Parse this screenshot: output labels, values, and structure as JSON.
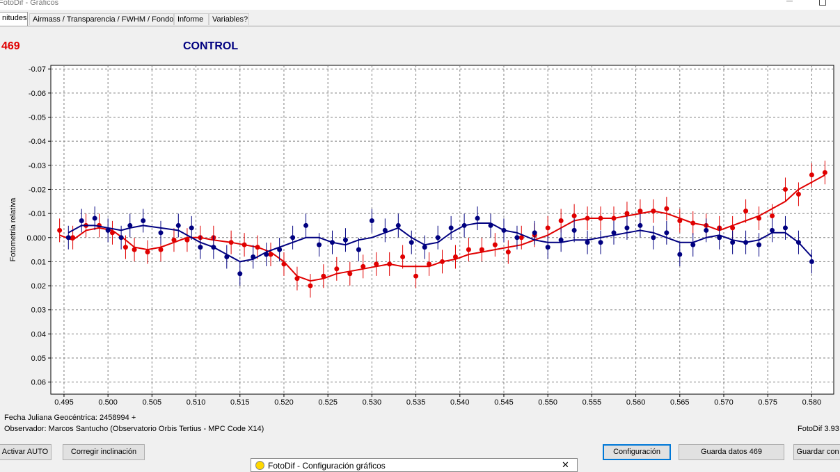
{
  "window": {
    "title": "FotoDif - Gráficos"
  },
  "tabs": [
    {
      "label": "nitudes",
      "active": true
    },
    {
      "label": "Airmass / Transparencia / FWHM / Fondo",
      "active": false
    },
    {
      "label": "Informe",
      "active": false
    },
    {
      "label": "Variables?",
      "active": false
    }
  ],
  "header": {
    "asteroid_label": "469",
    "control_label": "CONTROL"
  },
  "colors": {
    "asteroid": "#e00000",
    "control": "#000080",
    "grid": "#808080"
  },
  "chart_data": {
    "type": "scatter",
    "ylabel": "Fotometría relativa",
    "xlim": [
      0.4935,
      0.5825
    ],
    "ylim": [
      0.065,
      -0.0715
    ],
    "y_inverted": true,
    "grid": true,
    "x_ticks": [
      "0.495",
      "0.500",
      "0.505",
      "0.510",
      "0.515",
      "0.520",
      "0.525",
      "0.530",
      "0.535",
      "0.540",
      "0.545",
      "0.550",
      "0.555",
      "0.560",
      "0.565",
      "0.570",
      "0.575",
      "0.580"
    ],
    "y_ticks": [
      "-0.07",
      "-0.06",
      "-0.05",
      "-0.04",
      "-0.03",
      "-0.02",
      "-0.01",
      "0.000",
      "0.01",
      "0.02",
      "0.03",
      "0.04",
      "0.05",
      "0.06"
    ],
    "series": [
      {
        "name": "469",
        "color": "#e00000",
        "x": [
          0.4945,
          0.496,
          0.4975,
          0.499,
          0.5005,
          0.502,
          0.503,
          0.5045,
          0.506,
          0.5075,
          0.509,
          0.5105,
          0.512,
          0.514,
          0.5155,
          0.517,
          0.5185,
          0.52,
          0.5215,
          0.523,
          0.5245,
          0.526,
          0.5275,
          0.529,
          0.5305,
          0.532,
          0.5335,
          0.535,
          0.5365,
          0.538,
          0.5395,
          0.541,
          0.5425,
          0.544,
          0.5455,
          0.547,
          0.5485,
          0.55,
          0.5515,
          0.553,
          0.5545,
          0.556,
          0.5575,
          0.559,
          0.5605,
          0.562,
          0.5635,
          0.565,
          0.5665,
          0.568,
          0.5695,
          0.571,
          0.5725,
          0.574,
          0.5755,
          0.577,
          0.5785,
          0.58,
          0.5815
        ],
        "y": [
          -0.003,
          0.0,
          -0.005,
          -0.005,
          -0.002,
          0.004,
          0.005,
          0.006,
          0.005,
          0.001,
          0.001,
          0.0,
          0.0,
          0.002,
          0.003,
          0.004,
          0.007,
          0.011,
          0.017,
          0.02,
          0.016,
          0.013,
          0.015,
          0.012,
          0.011,
          0.011,
          0.008,
          0.016,
          0.011,
          0.01,
          0.008,
          0.005,
          0.005,
          0.003,
          0.006,
          0.0,
          -0.001,
          -0.004,
          -0.007,
          -0.009,
          -0.008,
          -0.008,
          -0.008,
          -0.01,
          -0.011,
          -0.011,
          -0.012,
          -0.007,
          -0.006,
          -0.005,
          -0.004,
          -0.004,
          -0.011,
          -0.008,
          -0.009,
          -0.02,
          -0.018,
          -0.026,
          -0.027
        ],
        "fit": [
          -0.001,
          0.001,
          -0.003,
          -0.004,
          -0.003,
          0.001,
          0.004,
          0.005,
          0.004,
          0.002,
          0.0,
          0.0,
          0.001,
          0.002,
          0.003,
          0.004,
          0.006,
          0.01,
          0.016,
          0.018,
          0.017,
          0.015,
          0.014,
          0.013,
          0.012,
          0.011,
          0.012,
          0.012,
          0.012,
          0.01,
          0.009,
          0.007,
          0.006,
          0.005,
          0.004,
          0.003,
          0.001,
          -0.001,
          -0.004,
          -0.007,
          -0.008,
          -0.008,
          -0.008,
          -0.009,
          -0.01,
          -0.011,
          -0.01,
          -0.008,
          -0.006,
          -0.005,
          -0.003,
          -0.005,
          -0.007,
          -0.009,
          -0.012,
          -0.015,
          -0.02,
          -0.023,
          -0.026
        ]
      },
      {
        "name": "CONTROL",
        "color": "#000080",
        "x": [
          0.4955,
          0.497,
          0.4985,
          0.5,
          0.5015,
          0.5025,
          0.504,
          0.506,
          0.508,
          0.5095,
          0.5105,
          0.512,
          0.5135,
          0.515,
          0.5165,
          0.518,
          0.5195,
          0.521,
          0.5225,
          0.524,
          0.5255,
          0.527,
          0.5285,
          0.53,
          0.5315,
          0.533,
          0.5345,
          0.536,
          0.5375,
          0.539,
          0.5405,
          0.542,
          0.5435,
          0.545,
          0.5465,
          0.5485,
          0.55,
          0.5515,
          0.553,
          0.5545,
          0.556,
          0.5575,
          0.559,
          0.5605,
          0.562,
          0.5635,
          0.565,
          0.5665,
          0.568,
          0.5695,
          0.571,
          0.5725,
          0.574,
          0.5755,
          0.577,
          0.5785,
          0.58
        ],
        "y": [
          0.0,
          -0.007,
          -0.008,
          -0.003,
          0.0,
          -0.005,
          -0.007,
          -0.002,
          -0.005,
          -0.004,
          0.004,
          0.004,
          0.008,
          0.015,
          0.008,
          0.007,
          0.005,
          0.0,
          -0.005,
          0.003,
          0.002,
          0.001,
          0.005,
          -0.007,
          -0.003,
          -0.005,
          0.002,
          0.004,
          0.0,
          -0.004,
          -0.005,
          -0.008,
          -0.005,
          -0.003,
          0.0,
          -0.002,
          0.004,
          0.001,
          -0.003,
          0.002,
          0.002,
          -0.002,
          -0.004,
          -0.005,
          0.0,
          -0.002,
          0.007,
          0.003,
          -0.003,
          0.0,
          0.002,
          0.002,
          0.003,
          -0.003,
          -0.004,
          0.002,
          0.01
        ],
        "fit": [
          -0.002,
          -0.005,
          -0.005,
          -0.004,
          -0.003,
          -0.004,
          -0.005,
          -0.004,
          -0.003,
          0.0,
          0.002,
          0.004,
          0.007,
          0.01,
          0.009,
          0.006,
          0.004,
          0.002,
          0.0,
          0.0,
          0.002,
          0.003,
          0.001,
          0.0,
          -0.002,
          -0.004,
          0.0,
          0.003,
          0.002,
          -0.002,
          -0.005,
          -0.006,
          -0.006,
          -0.003,
          -0.002,
          0.001,
          0.002,
          0.002,
          0.001,
          0.001,
          0.0,
          -0.001,
          -0.002,
          -0.003,
          -0.002,
          0.0,
          0.002,
          0.002,
          0.0,
          -0.001,
          0.001,
          0.002,
          0.001,
          -0.002,
          -0.002,
          0.002,
          0.008
        ]
      }
    ]
  },
  "footer": {
    "fecha_label": "Fecha Juliana Geocéntrica: 2458994 +",
    "observer": "Observador: Marcos Santucho (Observatorio Orbis Tertius - MPC Code X14)",
    "version": "FotoDif 3.93"
  },
  "buttons": {
    "activar": "Activar AUTO",
    "corregir": "Corregir inclinación",
    "configuracion": "Configuración",
    "guarda_datos": "Guarda datos 469",
    "guardar": "Guardar con"
  },
  "subwindow": {
    "title": "FotoDif - Configuración gráficos",
    "close_glyph": "✕"
  }
}
